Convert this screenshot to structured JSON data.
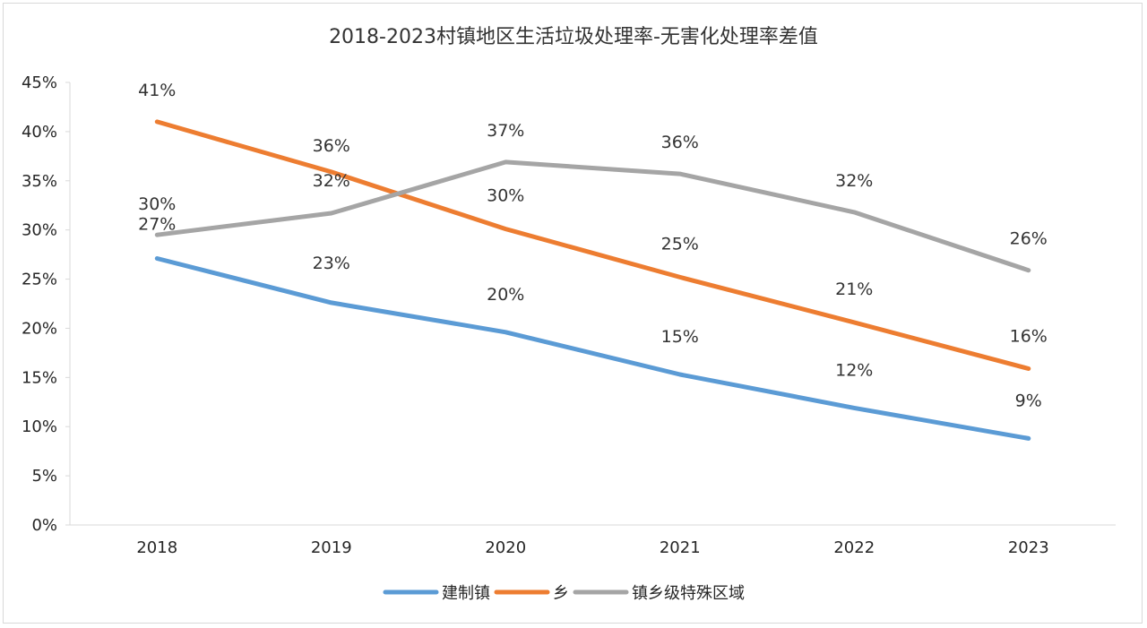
{
  "chart_data": {
    "type": "line",
    "title": "2018-2023村镇地区生活垃圾处理率-无害化处理率差值",
    "categories": [
      "2018",
      "2019",
      "2020",
      "2021",
      "2022",
      "2023"
    ],
    "y_ticks": [
      "0%",
      "5%",
      "10%",
      "15%",
      "20%",
      "25%",
      "30%",
      "35%",
      "40%",
      "45%"
    ],
    "ylim": [
      0,
      45
    ],
    "y_unit": "%",
    "grid": false,
    "legend_position": "bottom",
    "series": [
      {
        "name": "建制镇",
        "color": "#5b9bd5",
        "values": [
          27.1,
          22.6,
          19.6,
          15.3,
          11.9,
          8.8
        ],
        "labels": [
          "27%",
          "23%",
          "20%",
          "15%",
          "12%",
          "9%"
        ]
      },
      {
        "name": "乡",
        "color": "#ed7d31",
        "values": [
          41.0,
          35.9,
          30.1,
          25.2,
          20.6,
          15.9
        ],
        "labels": [
          "41%",
          "36%",
          "30%",
          "25%",
          "21%",
          "16%"
        ]
      },
      {
        "name": "镇乡级特殊区域",
        "color": "#a5a5a5",
        "values": [
          29.5,
          31.7,
          36.9,
          35.7,
          31.8,
          25.9
        ],
        "labels": [
          "30%",
          "32%",
          "37%",
          "36%",
          "32%",
          "26%"
        ]
      }
    ]
  }
}
